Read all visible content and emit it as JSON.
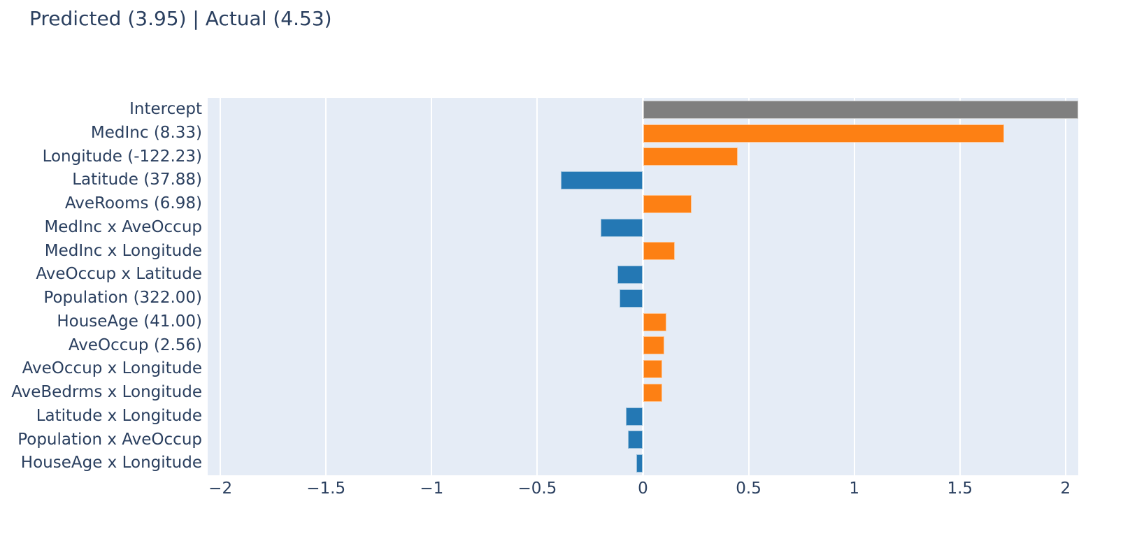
{
  "title": "Predicted (3.95) | Actual (4.53)",
  "chart_data": {
    "type": "bar",
    "orientation": "horizontal",
    "title": "Predicted (3.95) | Actual (4.53)",
    "categories": [
      "Intercept",
      "MedInc (8.33)",
      "Longitude (-122.23)",
      "Latitude (37.88)",
      "AveRooms (6.98)",
      "MedInc x AveOccup",
      "MedInc x Longitude",
      "AveOccup x Latitude",
      "Population (322.00)",
      "HouseAge (41.00)",
      "AveOccup (2.56)",
      "AveOccup x Longitude",
      "AveBedrms x Longitude",
      "Latitude x Longitude",
      "Population x AveOccup",
      "HouseAge x Longitude"
    ],
    "values": [
      2.06,
      1.71,
      0.45,
      -0.39,
      0.23,
      -0.2,
      0.15,
      -0.12,
      -0.11,
      0.11,
      0.1,
      0.09,
      0.09,
      -0.08,
      -0.07,
      -0.03
    ],
    "bar_colors": [
      "gray",
      "orange",
      "orange",
      "blue",
      "orange",
      "blue",
      "orange",
      "blue",
      "blue",
      "orange",
      "orange",
      "orange",
      "orange",
      "blue",
      "blue",
      "blue"
    ],
    "palette": {
      "blue": "#2478b4",
      "orange": "#fd8014",
      "gray": "#7f7f7f"
    },
    "plot_bg": "#e5ecf6",
    "grid_color": "#ffffff",
    "text_color": "#2a3f5f",
    "xlim": [
      -2.06,
      2.06
    ],
    "xticks": [
      -2,
      -1.5,
      -1,
      -0.5,
      0,
      0.5,
      1,
      1.5,
      2
    ],
    "xtick_labels": [
      "−2",
      "−1.5",
      "−1",
      "−0.5",
      "0",
      "0.5",
      "1",
      "1.5",
      "2"
    ],
    "grid": true,
    "legend": false,
    "xlabel": "",
    "ylabel": ""
  }
}
